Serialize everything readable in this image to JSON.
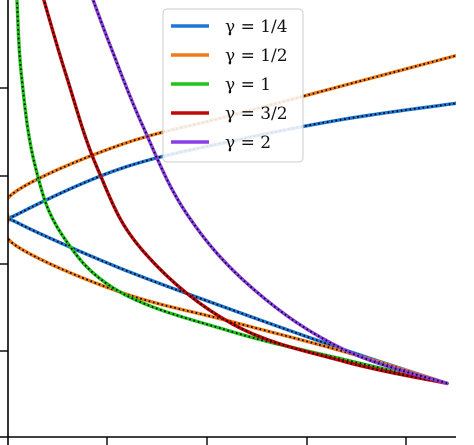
{
  "chart_data": {
    "type": "line",
    "title": "",
    "xlabel": "",
    "ylabel": "",
    "xlim": [
      0,
      1
    ],
    "ylim": [
      -1.1,
      1.1
    ],
    "grid": false,
    "legend_position": "top-center",
    "x_tick_count": 5,
    "y_tick_count": 5,
    "overlay_style": "black dotted line over each colored curve",
    "series": [
      {
        "name": "γ = 1/4",
        "color": "#1f77d4",
        "gamma": 0.25,
        "points": [
          [
            0.98,
            -0.83
          ],
          [
            0.75,
            -0.66
          ],
          [
            0.5,
            -0.46
          ],
          [
            0.25,
            -0.25
          ],
          [
            0.02,
            -0.02
          ],
          [
            0.02,
            0.02
          ],
          [
            0.25,
            0.25
          ],
          [
            0.5,
            0.39
          ],
          [
            0.75,
            0.5
          ],
          [
            1.0,
            0.58
          ]
        ]
      },
      {
        "name": "γ = 1/2",
        "color": "#f07a1a",
        "gamma": 0.5,
        "points": [
          [
            0.98,
            -0.83
          ],
          [
            0.75,
            -0.67
          ],
          [
            0.5,
            -0.52
          ],
          [
            0.25,
            -0.37
          ],
          [
            0.02,
            -0.14
          ],
          [
            0.0,
            0.0
          ],
          [
            0.02,
            0.14
          ],
          [
            0.25,
            0.37
          ],
          [
            0.5,
            0.52
          ],
          [
            0.75,
            0.67
          ],
          [
            1.0,
            0.82
          ]
        ]
      },
      {
        "name": "γ = 1",
        "color": "#22c31c",
        "gamma": 1,
        "points": [
          [
            0.98,
            -0.83
          ],
          [
            0.75,
            -0.71
          ],
          [
            0.5,
            -0.57
          ],
          [
            0.25,
            -0.37
          ],
          [
            0.12,
            -0.08
          ],
          [
            0.06,
            0.27
          ],
          [
            0.03,
            0.72
          ],
          [
            0.02,
            1.1
          ]
        ]
      },
      {
        "name": "γ = 3/2",
        "color": "#c00808",
        "gamma": 1.5,
        "points": [
          [
            0.98,
            -0.83
          ],
          [
            0.75,
            -0.72
          ],
          [
            0.5,
            -0.53
          ],
          [
            0.3,
            -0.16
          ],
          [
            0.2,
            0.25
          ],
          [
            0.13,
            0.72
          ],
          [
            0.08,
            1.1
          ]
        ]
      },
      {
        "name": "γ = 2",
        "color": "#8a3ee8",
        "gamma": 2,
        "points": [
          [
            0.98,
            -0.83
          ],
          [
            0.75,
            -0.66
          ],
          [
            0.55,
            -0.36
          ],
          [
            0.4,
            0.02
          ],
          [
            0.3,
            0.47
          ],
          [
            0.23,
            0.86
          ],
          [
            0.19,
            1.1
          ]
        ]
      }
    ]
  }
}
